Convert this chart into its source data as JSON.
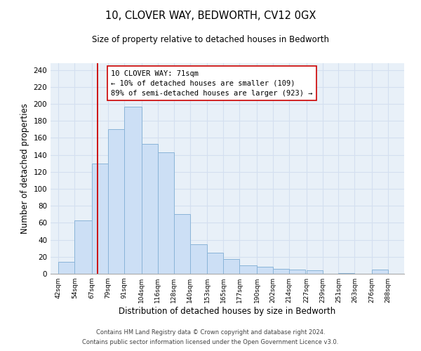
{
  "title1": "10, CLOVER WAY, BEDWORTH, CV12 0GX",
  "title2": "Size of property relative to detached houses in Bedworth",
  "xlabel": "Distribution of detached houses by size in Bedworth",
  "ylabel": "Number of detached properties",
  "bar_left_edges": [
    42,
    54,
    67,
    79,
    91,
    104,
    116,
    128,
    140,
    153,
    165,
    177,
    190,
    202,
    214,
    227,
    239,
    251,
    263,
    276
  ],
  "bar_heights": [
    14,
    63,
    130,
    170,
    197,
    153,
    143,
    70,
    35,
    25,
    17,
    10,
    8,
    6,
    5,
    4,
    0,
    1,
    0,
    5
  ],
  "bar_color": "#ccdff5",
  "bar_edge_color": "#8ab4d8",
  "bar_widths": [
    12,
    13,
    12,
    12,
    13,
    12,
    12,
    12,
    13,
    12,
    12,
    13,
    12,
    12,
    12,
    12,
    12,
    12,
    13,
    12
  ],
  "vline_x": 71,
  "vline_color": "#cc0000",
  "annotation_title": "10 CLOVER WAY: 71sqm",
  "annotation_line1": "← 10% of detached houses are smaller (109)",
  "annotation_line2": "89% of semi-detached houses are larger (923) →",
  "box_border_color": "#cc0000",
  "ylim_max": 248,
  "yticks": [
    0,
    20,
    40,
    60,
    80,
    100,
    120,
    140,
    160,
    180,
    200,
    220,
    240
  ],
  "xtick_labels": [
    "42sqm",
    "54sqm",
    "67sqm",
    "79sqm",
    "91sqm",
    "104sqm",
    "116sqm",
    "128sqm",
    "140sqm",
    "153sqm",
    "165sqm",
    "177sqm",
    "190sqm",
    "202sqm",
    "214sqm",
    "227sqm",
    "239sqm",
    "251sqm",
    "263sqm",
    "276sqm",
    "288sqm"
  ],
  "xtick_positions": [
    42,
    54,
    67,
    79,
    91,
    104,
    116,
    128,
    140,
    153,
    165,
    177,
    190,
    202,
    214,
    227,
    239,
    251,
    263,
    276,
    288
  ],
  "footer1": "Contains HM Land Registry data © Crown copyright and database right 2024.",
  "footer2": "Contains public sector information licensed under the Open Government Licence v3.0.",
  "bg_color": "#ffffff",
  "grid_color": "#d4dff0",
  "xlim_left": 36,
  "xlim_right": 300
}
